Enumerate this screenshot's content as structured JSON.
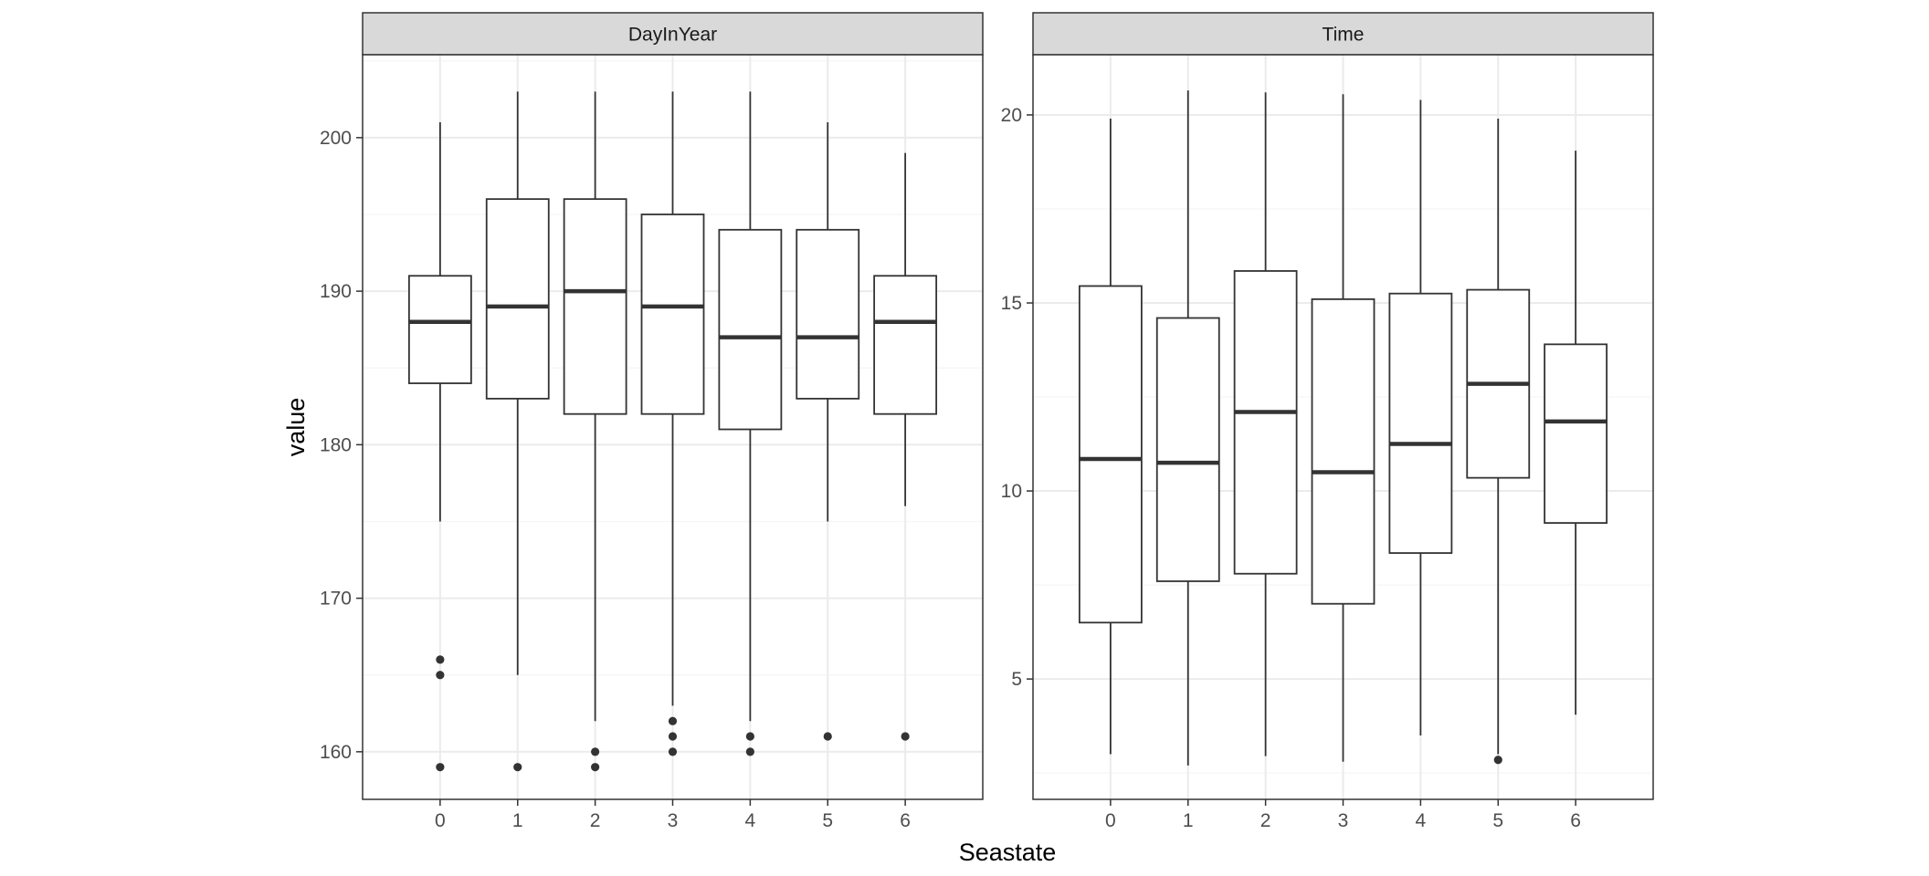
{
  "chart_data": {
    "type": "boxplot",
    "xlabel": "Seastate",
    "ylabel": "value",
    "categories": [
      "0",
      "1",
      "2",
      "3",
      "4",
      "5",
      "6"
    ],
    "grid": true,
    "colors": {
      "panel_border": "#333333",
      "strip_fill": "#d9d9d9",
      "grid_major": "#ebebeb",
      "grid_minor": "#f5f5f5",
      "box": "#333333",
      "point": "#333333"
    },
    "panels": [
      {
        "title": "DayInYear",
        "ylim": [
          156.9,
          205.4
        ],
        "yticks": [
          160,
          170,
          180,
          190,
          200
        ],
        "ytick_labels": [
          "160",
          "170",
          "180",
          "190",
          "200"
        ],
        "boxes": [
          {
            "category": "0",
            "lower_whisker": 175,
            "q1": 184,
            "median": 188,
            "q3": 191,
            "upper_whisker": 201,
            "outliers": [
              166,
              165,
              159
            ]
          },
          {
            "category": "1",
            "lower_whisker": 165,
            "q1": 183,
            "median": 189,
            "q3": 196,
            "upper_whisker": 203,
            "outliers": [
              159
            ]
          },
          {
            "category": "2",
            "lower_whisker": 162,
            "q1": 182,
            "median": 190,
            "q3": 196,
            "upper_whisker": 203,
            "outliers": [
              160,
              159
            ]
          },
          {
            "category": "3",
            "lower_whisker": 163,
            "q1": 182,
            "median": 189,
            "q3": 195,
            "upper_whisker": 203,
            "outliers": [
              162,
              161,
              160
            ]
          },
          {
            "category": "4",
            "lower_whisker": 162,
            "q1": 181,
            "median": 187,
            "q3": 194,
            "upper_whisker": 203,
            "outliers": [
              161,
              160
            ]
          },
          {
            "category": "5",
            "lower_whisker": 175,
            "q1": 183,
            "median": 187,
            "q3": 194,
            "upper_whisker": 201,
            "outliers": [
              161
            ]
          },
          {
            "category": "6",
            "lower_whisker": 176,
            "q1": 182,
            "median": 188,
            "q3": 191,
            "upper_whisker": 199,
            "outliers": [
              161
            ]
          }
        ]
      },
      {
        "title": "Time",
        "ylim": [
          1.8,
          21.6
        ],
        "yticks": [
          5,
          10,
          15,
          20
        ],
        "ytick_labels": [
          "5",
          "10",
          "15",
          "20"
        ],
        "boxes": [
          {
            "category": "0",
            "lower_whisker": 3.0,
            "q1": 6.5,
            "median": 10.85,
            "q3": 15.45,
            "upper_whisker": 19.9,
            "outliers": []
          },
          {
            "category": "1",
            "lower_whisker": 2.7,
            "q1": 7.6,
            "median": 10.75,
            "q3": 14.6,
            "upper_whisker": 20.65,
            "outliers": []
          },
          {
            "category": "2",
            "lower_whisker": 2.95,
            "q1": 7.8,
            "median": 12.1,
            "q3": 15.85,
            "upper_whisker": 20.6,
            "outliers": []
          },
          {
            "category": "3",
            "lower_whisker": 2.8,
            "q1": 7.0,
            "median": 10.5,
            "q3": 15.1,
            "upper_whisker": 20.55,
            "outliers": []
          },
          {
            "category": "4",
            "lower_whisker": 3.5,
            "q1": 8.35,
            "median": 11.25,
            "q3": 15.25,
            "upper_whisker": 20.4,
            "outliers": []
          },
          {
            "category": "5",
            "lower_whisker": 3.0,
            "q1": 10.35,
            "median": 12.85,
            "q3": 15.35,
            "upper_whisker": 19.9,
            "outliers": [
              2.85
            ]
          },
          {
            "category": "6",
            "lower_whisker": 4.05,
            "q1": 9.15,
            "median": 11.85,
            "q3": 13.9,
            "upper_whisker": 19.05,
            "outliers": []
          }
        ]
      }
    ]
  }
}
